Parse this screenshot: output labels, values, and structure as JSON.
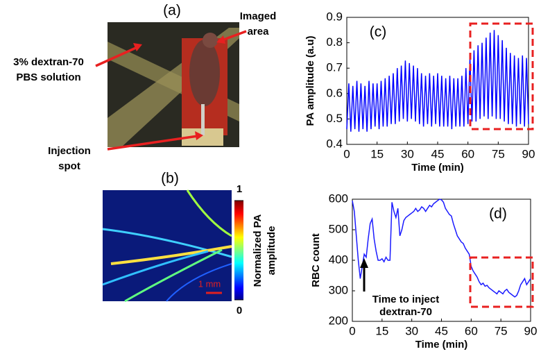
{
  "panel_a": {
    "label": "(a)",
    "annotations": [
      {
        "lines": [
          "Imaged",
          "area"
        ]
      },
      {
        "lines": [
          "3% dextran-70",
          "PBS solution"
        ]
      },
      {
        "lines": [
          "Injection",
          "spot"
        ]
      }
    ]
  },
  "panel_b": {
    "label": "(b)",
    "colorbar_label": [
      "Normalized PA",
      "amplitude"
    ],
    "colorbar_ticks": [
      0,
      1
    ],
    "scale_bar": "1 mm"
  },
  "chart_data": [
    {
      "type": "line",
      "label": "(c)",
      "xlabel": "Time (min)",
      "ylabel": "PA amplitude (a.u)",
      "color": "#0000ff",
      "x": [
        0,
        1,
        2,
        3,
        4,
        5,
        6,
        7,
        8,
        9,
        10,
        11,
        12,
        13,
        14,
        15,
        16,
        17,
        18,
        19,
        20,
        21,
        22,
        23,
        24,
        25,
        26,
        27,
        28,
        29,
        30,
        31,
        32,
        33,
        34,
        35,
        36,
        37,
        38,
        39,
        40,
        41,
        42,
        43,
        44,
        45,
        46,
        47,
        48,
        49,
        50,
        51,
        52,
        53,
        54,
        55,
        56,
        57,
        58,
        59,
        60,
        61,
        62,
        63,
        64,
        65,
        66,
        67,
        68,
        69,
        70,
        71,
        72,
        73,
        74,
        75,
        76,
        77,
        78,
        79,
        80,
        81,
        82,
        83,
        84,
        85,
        86,
        87,
        88,
        89,
        90
      ],
      "values": [
        0.46,
        0.64,
        0.45,
        0.63,
        0.46,
        0.65,
        0.45,
        0.64,
        0.46,
        0.63,
        0.45,
        0.65,
        0.46,
        0.64,
        0.47,
        0.64,
        0.46,
        0.65,
        0.47,
        0.66,
        0.47,
        0.67,
        0.48,
        0.68,
        0.48,
        0.7,
        0.49,
        0.71,
        0.5,
        0.73,
        0.49,
        0.72,
        0.5,
        0.71,
        0.49,
        0.7,
        0.48,
        0.68,
        0.47,
        0.67,
        0.48,
        0.68,
        0.47,
        0.67,
        0.48,
        0.68,
        0.47,
        0.67,
        0.47,
        0.66,
        0.47,
        0.67,
        0.46,
        0.66,
        0.47,
        0.66,
        0.47,
        0.67,
        0.47,
        0.7,
        0.48,
        0.74,
        0.49,
        0.77,
        0.49,
        0.79,
        0.5,
        0.8,
        0.51,
        0.82,
        0.5,
        0.84,
        0.51,
        0.85,
        0.5,
        0.83,
        0.5,
        0.81,
        0.49,
        0.78,
        0.48,
        0.76,
        0.48,
        0.75,
        0.47,
        0.74,
        0.48,
        0.75,
        0.47,
        0.74,
        0.48
      ],
      "xlim": [
        0,
        90
      ],
      "xticks": [
        0,
        15,
        30,
        45,
        60,
        75,
        90
      ],
      "ylim": [
        0.4,
        0.9
      ],
      "yticks": [
        0.4,
        0.5,
        0.6,
        0.7,
        0.8,
        0.9
      ]
    },
    {
      "type": "line",
      "label": "(d)",
      "xlabel": "Time (min)",
      "ylabel": "RBC count",
      "color": "#1a1aff",
      "annotation": [
        "Time to inject",
        "dextran-70"
      ],
      "x": [
        0,
        1,
        2,
        3,
        4,
        5,
        6,
        7,
        8,
        9,
        10,
        11,
        12,
        13,
        14,
        15,
        16,
        17,
        18,
        19,
        20,
        21,
        22,
        23,
        24,
        25,
        26,
        27,
        28,
        29,
        30,
        31,
        32,
        33,
        34,
        35,
        36,
        37,
        38,
        39,
        40,
        41,
        42,
        43,
        44,
        45,
        46,
        47,
        48,
        49,
        50,
        51,
        52,
        53,
        54,
        55,
        56,
        57,
        58,
        59,
        60,
        61,
        62,
        63,
        64,
        65,
        66,
        67,
        68,
        69,
        70,
        71,
        72,
        73,
        74,
        75,
        76,
        77,
        78,
        79,
        80,
        81,
        82,
        83,
        84,
        85,
        86,
        87,
        88,
        89,
        90
      ],
      "values": [
        595,
        560,
        480,
        400,
        340,
        380,
        420,
        410,
        470,
        520,
        535,
        470,
        430,
        400,
        400,
        405,
        395,
        410,
        400,
        400,
        590,
        560,
        540,
        570,
        480,
        500,
        530,
        540,
        545,
        550,
        555,
        560,
        570,
        560,
        565,
        575,
        570,
        560,
        570,
        580,
        575,
        585,
        590,
        595,
        600,
        598,
        590,
        570,
        560,
        550,
        545,
        520,
        500,
        480,
        470,
        460,
        455,
        440,
        430,
        420,
        380,
        365,
        355,
        345,
        330,
        320,
        325,
        315,
        318,
        310,
        305,
        300,
        295,
        290,
        300,
        295,
        290,
        300,
        305,
        295,
        290,
        285,
        280,
        285,
        300,
        320,
        330,
        340,
        320,
        330,
        340
      ],
      "xlim": [
        0,
        90
      ],
      "xticks": [
        0,
        15,
        30,
        45,
        60,
        75,
        90
      ],
      "ylim": [
        200,
        600
      ],
      "yticks": [
        200,
        300,
        400,
        500,
        600
      ]
    }
  ]
}
